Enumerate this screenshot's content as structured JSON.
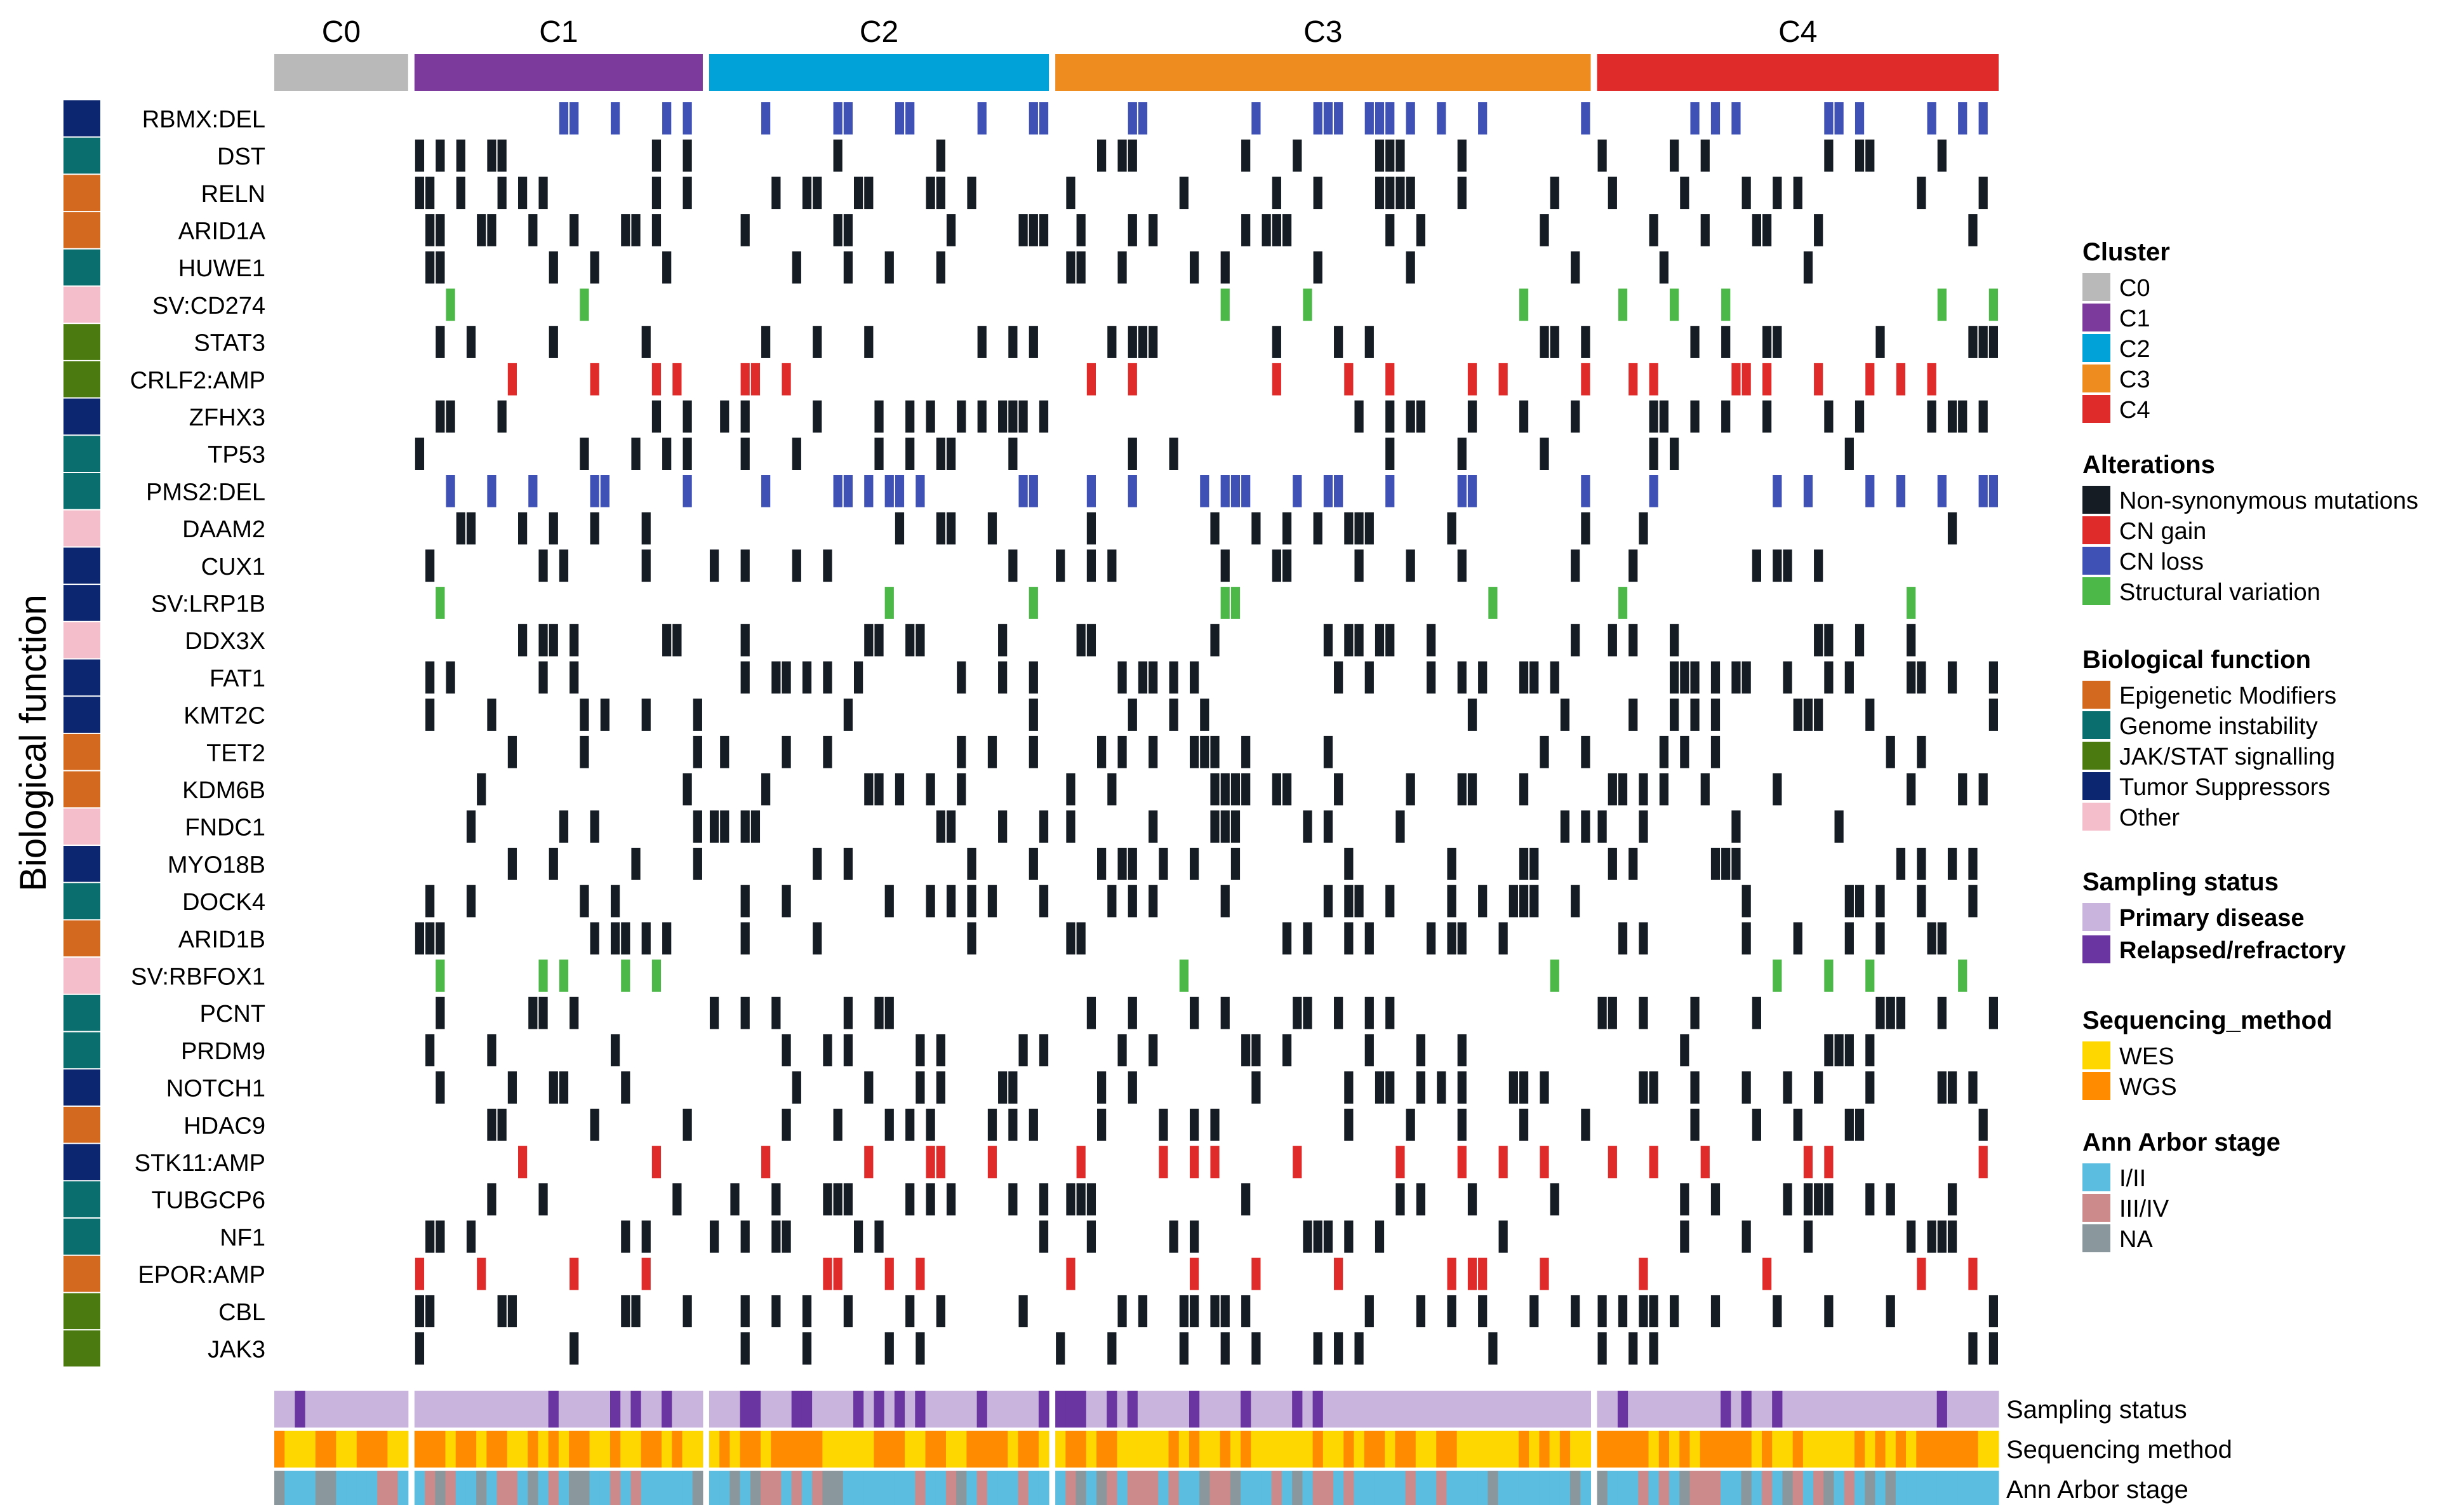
{
  "chart_data": {
    "type": "heatmap",
    "title": "",
    "y_axis_label": "Biological function",
    "clusters": [
      {
        "name": "C0",
        "n_samples": 13,
        "color": "#b9b9b9"
      },
      {
        "name": "C1",
        "n_samples": 28,
        "color": "#7b3a9c"
      },
      {
        "name": "C2",
        "n_samples": 33,
        "color": "#00a2d8"
      },
      {
        "name": "C3",
        "n_samples": 52,
        "color": "#ef8c20"
      },
      {
        "name": "C4",
        "n_samples": 39,
        "color": "#e02b2b"
      }
    ],
    "genes": [
      {
        "label": "RBMX:DEL",
        "function": "Tumor Suppressors"
      },
      {
        "label": "DST",
        "function": "Genome instability"
      },
      {
        "label": "RELN",
        "function": "Epigenetic Modifiers"
      },
      {
        "label": "ARID1A",
        "function": "Epigenetic Modifiers"
      },
      {
        "label": "HUWE1",
        "function": "Genome instability"
      },
      {
        "label": "SV:CD274",
        "function": "Other"
      },
      {
        "label": "STAT3",
        "function": "JAK/STAT signalling"
      },
      {
        "label": "CRLF2:AMP",
        "function": "JAK/STAT signalling"
      },
      {
        "label": "ZFHX3",
        "function": "Tumor Suppressors"
      },
      {
        "label": "TP53",
        "function": "Genome instability"
      },
      {
        "label": "PMS2:DEL",
        "function": "Genome instability"
      },
      {
        "label": "DAAM2",
        "function": "Other"
      },
      {
        "label": "CUX1",
        "function": "Tumor Suppressors"
      },
      {
        "label": "SV:LRP1B",
        "function": "Tumor Suppressors"
      },
      {
        "label": "DDX3X",
        "function": "Other"
      },
      {
        "label": "FAT1",
        "function": "Tumor Suppressors"
      },
      {
        "label": "KMT2C",
        "function": "Tumor Suppressors"
      },
      {
        "label": "TET2",
        "function": "Epigenetic Modifiers"
      },
      {
        "label": "KDM6B",
        "function": "Epigenetic Modifiers"
      },
      {
        "label": "FNDC1",
        "function": "Other"
      },
      {
        "label": "MYO18B",
        "function": "Tumor Suppressors"
      },
      {
        "label": "DOCK4",
        "function": "Genome instability"
      },
      {
        "label": "ARID1B",
        "function": "Epigenetic Modifiers"
      },
      {
        "label": "SV:RBFOX1",
        "function": "Other"
      },
      {
        "label": "PCNT",
        "function": "Genome instability"
      },
      {
        "label": "PRDM9",
        "function": "Genome instability"
      },
      {
        "label": "NOTCH1",
        "function": "Tumor Suppressors"
      },
      {
        "label": "HDAC9",
        "function": "Epigenetic Modifiers"
      },
      {
        "label": "STK11:AMP",
        "function": "Tumor Suppressors"
      },
      {
        "label": "TUBGCP6",
        "function": "Genome instability"
      },
      {
        "label": "NF1",
        "function": "Genome instability"
      },
      {
        "label": "EPOR:AMP",
        "function": "Epigenetic Modifiers"
      },
      {
        "label": "CBL",
        "function": "JAK/STAT signalling"
      },
      {
        "label": "JAK3",
        "function": "JAK/STAT signalling"
      }
    ],
    "annotation_tracks": [
      "Sampling status",
      "Sequencing method",
      "Ann Arbor stage"
    ],
    "legends": [
      {
        "title": "Cluster",
        "items": [
          {
            "label": "C0",
            "color": "#b9b9b9"
          },
          {
            "label": "C1",
            "color": "#7b3a9c"
          },
          {
            "label": "C2",
            "color": "#00a2d8"
          },
          {
            "label": "C3",
            "color": "#ef8c20"
          },
          {
            "label": "C4",
            "color": "#e02b2b"
          }
        ]
      },
      {
        "title": "Alterations",
        "items": [
          {
            "label": "Non-synonymous mutations",
            "color": "#151c24"
          },
          {
            "label": "CN gain",
            "color": "#e02b2b"
          },
          {
            "label": "CN loss",
            "color": "#3f51b5"
          },
          {
            "label": "Structural variation",
            "color": "#4cb848"
          }
        ]
      },
      {
        "title": "Biological function",
        "items": [
          {
            "label": "Epigenetic Modifiers",
            "color": "#d2691e"
          },
          {
            "label": "Genome instability",
            "color": "#0b6e6e"
          },
          {
            "label": "JAK/STAT signalling",
            "color": "#4a7a10"
          },
          {
            "label": "Tumor Suppressors",
            "color": "#0d2670"
          },
          {
            "label": "Other",
            "color": "#f4bfcb"
          }
        ]
      },
      {
        "title": "Sampling status",
        "bold_items": true,
        "items": [
          {
            "label": "Primary disease",
            "color": "#c8b4dc"
          },
          {
            "label": "Relapsed/refractory",
            "color": "#6a35a0"
          }
        ]
      },
      {
        "title": "Sequencing_method",
        "items": [
          {
            "label": "WES",
            "color": "#ffd700"
          },
          {
            "label": "WGS",
            "color": "#ff8c00"
          }
        ]
      },
      {
        "title": "Ann Arbor stage",
        "items": [
          {
            "label": "I/II",
            "color": "#5bbde0"
          },
          {
            "label": "III/IV",
            "color": "#cc8a8a"
          },
          {
            "label": "NA",
            "color": "#8a979c"
          }
        ]
      }
    ],
    "alteration_colors": {
      "mut": "#151c24",
      "gain": "#e02b2b",
      "loss": "#3f51b5",
      "sv": "#4cb848"
    },
    "grid": false
  }
}
